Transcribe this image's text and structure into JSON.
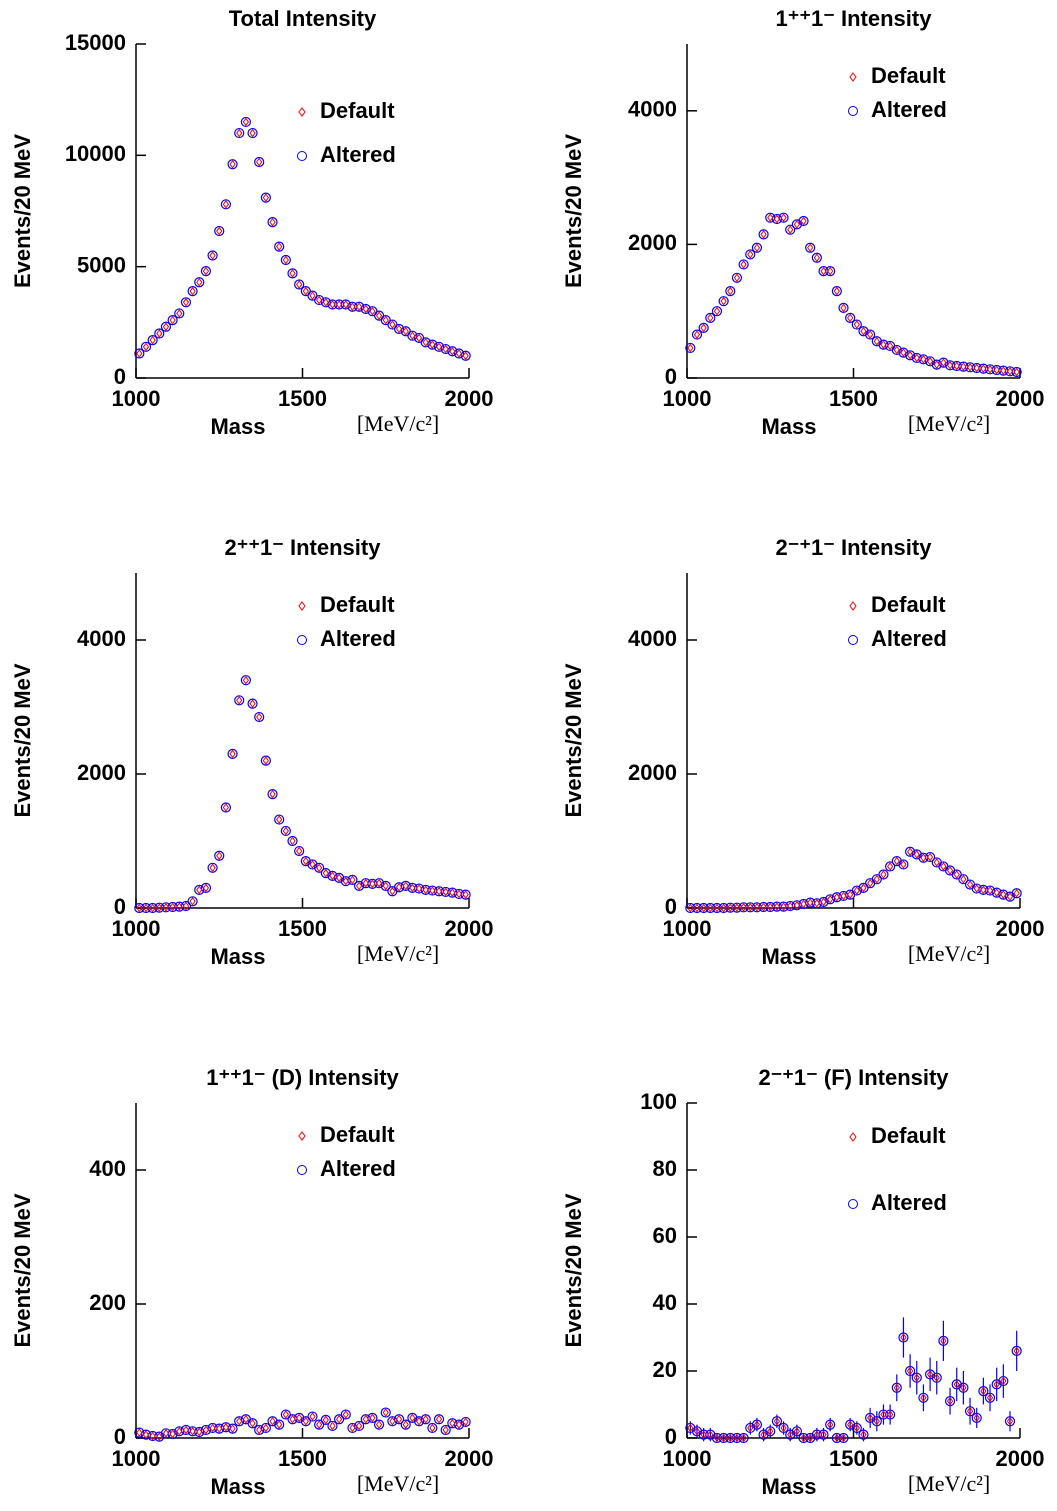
{
  "chart_data": [
    {
      "type": "scatter",
      "title": "Total Intensity",
      "ylabel": "Events/20 MeV",
      "xlabel": "Mass",
      "xunit": "[MeV/c²]",
      "xlim": [
        1000,
        2000
      ],
      "xticks": [
        1000,
        1500,
        2000
      ],
      "ylim": [
        0,
        15000
      ],
      "yticks": [
        0,
        5000,
        10000,
        15000
      ],
      "x": [
        1010,
        1030,
        1050,
        1070,
        1090,
        1110,
        1130,
        1150,
        1170,
        1190,
        1210,
        1230,
        1250,
        1270,
        1290,
        1310,
        1330,
        1350,
        1370,
        1390,
        1410,
        1430,
        1450,
        1470,
        1490,
        1510,
        1530,
        1550,
        1570,
        1590,
        1610,
        1630,
        1650,
        1670,
        1690,
        1710,
        1730,
        1750,
        1770,
        1790,
        1810,
        1830,
        1850,
        1870,
        1890,
        1910,
        1930,
        1950,
        1970,
        1990
      ],
      "series": [
        {
          "name": "Default",
          "color": "#ff0000",
          "values": [
            1100,
            1400,
            1700,
            2000,
            2300,
            2600,
            2900,
            3400,
            3900,
            4300,
            4800,
            5500,
            6600,
            7800,
            9600,
            11000,
            11500,
            11000,
            9700,
            8100,
            7000,
            5900,
            5300,
            4700,
            4200,
            3900,
            3700,
            3500,
            3400,
            3300,
            3300,
            3300,
            3200,
            3200,
            3100,
            3000,
            2800,
            2600,
            2400,
            2200,
            2100,
            1900,
            1800,
            1600,
            1500,
            1400,
            1300,
            1200,
            1100,
            1000
          ]
        },
        {
          "name": "Altered",
          "color": "#0000ff",
          "values": [
            1100,
            1400,
            1700,
            2000,
            2300,
            2600,
            2900,
            3400,
            3900,
            4300,
            4800,
            5500,
            6600,
            7800,
            9600,
            11000,
            11500,
            11000,
            9700,
            8100,
            7000,
            5900,
            5300,
            4700,
            4200,
            3900,
            3700,
            3500,
            3400,
            3300,
            3300,
            3300,
            3200,
            3200,
            3100,
            3000,
            2800,
            2600,
            2400,
            2200,
            2100,
            1900,
            1800,
            1600,
            1500,
            1400,
            1300,
            1200,
            1100,
            1000
          ]
        }
      ]
    },
    {
      "type": "scatter",
      "title": "1⁺⁺1⁻ Intensity",
      "ylabel": "Events/20 MeV",
      "xlabel": "Mass",
      "xunit": "[MeV/c²]",
      "xlim": [
        1000,
        2000
      ],
      "xticks": [
        1000,
        1500,
        2000
      ],
      "ylim": [
        0,
        5000
      ],
      "yticks": [
        0,
        2000,
        4000
      ],
      "x": [
        1010,
        1030,
        1050,
        1070,
        1090,
        1110,
        1130,
        1150,
        1170,
        1190,
        1210,
        1230,
        1250,
        1270,
        1290,
        1310,
        1330,
        1350,
        1370,
        1390,
        1410,
        1430,
        1450,
        1470,
        1490,
        1510,
        1530,
        1550,
        1570,
        1590,
        1610,
        1630,
        1650,
        1670,
        1690,
        1710,
        1730,
        1750,
        1770,
        1790,
        1810,
        1830,
        1850,
        1870,
        1890,
        1910,
        1930,
        1950,
        1970,
        1990
      ],
      "series": [
        {
          "name": "Default",
          "color": "#ff0000",
          "values": [
            450,
            650,
            750,
            900,
            1000,
            1150,
            1300,
            1500,
            1700,
            1850,
            1950,
            2150,
            2400,
            2380,
            2400,
            2220,
            2300,
            2350,
            1950,
            1800,
            1600,
            1600,
            1300,
            1050,
            900,
            800,
            700,
            650,
            550,
            500,
            480,
            420,
            380,
            340,
            300,
            280,
            250,
            200,
            230,
            190,
            180,
            170,
            160,
            150,
            140,
            130,
            120,
            110,
            100,
            90
          ]
        },
        {
          "name": "Altered",
          "color": "#0000ff",
          "values": [
            450,
            650,
            750,
            900,
            1000,
            1150,
            1300,
            1500,
            1700,
            1850,
            1950,
            2150,
            2400,
            2380,
            2400,
            2220,
            2300,
            2350,
            1950,
            1800,
            1600,
            1600,
            1300,
            1050,
            900,
            800,
            700,
            650,
            550,
            500,
            480,
            420,
            380,
            340,
            300,
            280,
            250,
            200,
            230,
            190,
            180,
            170,
            160,
            150,
            140,
            130,
            120,
            110,
            100,
            90
          ]
        }
      ]
    },
    {
      "type": "scatter",
      "title": "2⁺⁺1⁻ Intensity",
      "ylabel": "Events/20 MeV",
      "xlabel": "Mass",
      "xunit": "[MeV/c²]",
      "xlim": [
        1000,
        2000
      ],
      "xticks": [
        1000,
        1500,
        2000
      ],
      "ylim": [
        0,
        5000
      ],
      "yticks": [
        0,
        2000,
        4000
      ],
      "x": [
        1010,
        1030,
        1050,
        1070,
        1090,
        1110,
        1130,
        1150,
        1170,
        1190,
        1210,
        1230,
        1250,
        1270,
        1290,
        1310,
        1330,
        1350,
        1370,
        1390,
        1410,
        1430,
        1450,
        1470,
        1490,
        1510,
        1530,
        1550,
        1570,
        1590,
        1610,
        1630,
        1650,
        1670,
        1690,
        1710,
        1730,
        1750,
        1770,
        1790,
        1810,
        1830,
        1850,
        1870,
        1890,
        1910,
        1930,
        1950,
        1970,
        1990
      ],
      "series": [
        {
          "name": "Default",
          "color": "#ff0000",
          "values": [
            0,
            0,
            0,
            5,
            10,
            15,
            20,
            30,
            100,
            270,
            300,
            600,
            780,
            1500,
            2300,
            3100,
            3400,
            3050,
            2850,
            2200,
            1700,
            1320,
            1150,
            1000,
            850,
            700,
            650,
            600,
            520,
            480,
            450,
            400,
            420,
            330,
            370,
            360,
            370,
            330,
            250,
            310,
            330,
            300,
            290,
            270,
            260,
            250,
            240,
            230,
            210,
            200
          ]
        },
        {
          "name": "Altered",
          "color": "#0000ff",
          "values": [
            0,
            0,
            0,
            5,
            10,
            15,
            20,
            30,
            100,
            270,
            300,
            600,
            780,
            1500,
            2300,
            3100,
            3400,
            3050,
            2850,
            2200,
            1700,
            1320,
            1150,
            1000,
            850,
            700,
            650,
            600,
            520,
            480,
            450,
            400,
            420,
            330,
            370,
            360,
            370,
            330,
            250,
            310,
            330,
            300,
            290,
            270,
            260,
            250,
            240,
            230,
            210,
            200
          ]
        }
      ]
    },
    {
      "type": "scatter",
      "title": "2⁻⁺1⁻ Intensity",
      "ylabel": "Events/20 MeV",
      "xlabel": "Mass",
      "xunit": "[MeV/c²]",
      "xlim": [
        1000,
        2000
      ],
      "xticks": [
        1000,
        1500,
        2000
      ],
      "ylim": [
        0,
        5000
      ],
      "yticks": [
        0,
        2000,
        4000
      ],
      "x": [
        1010,
        1030,
        1050,
        1070,
        1090,
        1110,
        1130,
        1150,
        1170,
        1190,
        1210,
        1230,
        1250,
        1270,
        1290,
        1310,
        1330,
        1350,
        1370,
        1390,
        1410,
        1430,
        1450,
        1470,
        1490,
        1510,
        1530,
        1550,
        1570,
        1590,
        1610,
        1630,
        1650,
        1670,
        1690,
        1710,
        1730,
        1750,
        1770,
        1790,
        1810,
        1830,
        1850,
        1870,
        1890,
        1910,
        1930,
        1950,
        1970,
        1990
      ],
      "series": [
        {
          "name": "Default",
          "color": "#ff0000",
          "values": [
            0,
            0,
            0,
            0,
            0,
            0,
            5,
            5,
            10,
            10,
            10,
            15,
            15,
            20,
            20,
            30,
            40,
            60,
            80,
            70,
            90,
            130,
            160,
            180,
            200,
            260,
            300,
            370,
            430,
            500,
            620,
            700,
            650,
            840,
            800,
            750,
            760,
            680,
            620,
            560,
            500,
            430,
            350,
            290,
            270,
            260,
            230,
            200,
            170,
            220
          ]
        },
        {
          "name": "Altered",
          "color": "#0000ff",
          "values": [
            0,
            0,
            0,
            0,
            0,
            0,
            5,
            5,
            10,
            10,
            10,
            15,
            15,
            20,
            20,
            30,
            40,
            60,
            80,
            70,
            90,
            130,
            160,
            180,
            200,
            260,
            300,
            370,
            430,
            500,
            620,
            700,
            650,
            840,
            800,
            750,
            760,
            680,
            620,
            560,
            500,
            430,
            350,
            290,
            270,
            260,
            230,
            200,
            170,
            220
          ]
        }
      ]
    },
    {
      "type": "scatter",
      "title": "1⁺⁺1⁻ (D) Intensity",
      "ylabel": "Events/20 MeV",
      "xlabel": "Mass",
      "xunit": "[MeV/c²]",
      "xlim": [
        1000,
        2000
      ],
      "xticks": [
        1000,
        1500,
        2000
      ],
      "ylim": [
        0,
        500
      ],
      "yticks": [
        0,
        200,
        400
      ],
      "x": [
        1010,
        1030,
        1050,
        1070,
        1090,
        1110,
        1130,
        1150,
        1170,
        1190,
        1210,
        1230,
        1250,
        1270,
        1290,
        1310,
        1330,
        1350,
        1370,
        1390,
        1410,
        1430,
        1450,
        1470,
        1490,
        1510,
        1530,
        1550,
        1570,
        1590,
        1610,
        1630,
        1650,
        1670,
        1690,
        1710,
        1730,
        1750,
        1770,
        1790,
        1810,
        1830,
        1850,
        1870,
        1890,
        1910,
        1930,
        1950,
        1970,
        1990
      ],
      "series": [
        {
          "name": "Default",
          "color": "#ff0000",
          "values": [
            8,
            5,
            3,
            2,
            7,
            6,
            10,
            12,
            10,
            9,
            12,
            15,
            14,
            16,
            14,
            25,
            28,
            22,
            12,
            15,
            25,
            20,
            35,
            28,
            30,
            25,
            32,
            20,
            27,
            18,
            28,
            35,
            15,
            18,
            28,
            30,
            20,
            38,
            25,
            28,
            20,
            30,
            25,
            28,
            15,
            28,
            12,
            22,
            20,
            24
          ]
        },
        {
          "name": "Altered",
          "color": "#0000ff",
          "values": [
            8,
            5,
            3,
            2,
            7,
            6,
            10,
            12,
            10,
            9,
            12,
            15,
            14,
            16,
            14,
            25,
            28,
            22,
            12,
            15,
            25,
            20,
            35,
            28,
            30,
            25,
            32,
            20,
            27,
            18,
            28,
            35,
            15,
            18,
            28,
            30,
            20,
            38,
            25,
            28,
            20,
            30,
            25,
            28,
            15,
            28,
            12,
            22,
            20,
            24
          ]
        }
      ]
    },
    {
      "type": "scatter",
      "title": "2⁻⁺1⁻ (F) Intensity",
      "ylabel": "Events/20 MeV",
      "xlabel": "Mass",
      "xunit": "[MeV/c²]",
      "xlim": [
        1000,
        2000
      ],
      "xticks": [
        1000,
        1500,
        2000
      ],
      "ylim": [
        0,
        100
      ],
      "yticks": [
        0,
        20,
        40,
        60,
        80,
        100
      ],
      "x": [
        1010,
        1030,
        1050,
        1070,
        1090,
        1110,
        1130,
        1150,
        1170,
        1190,
        1210,
        1230,
        1250,
        1270,
        1290,
        1310,
        1330,
        1350,
        1370,
        1390,
        1410,
        1430,
        1450,
        1470,
        1490,
        1510,
        1530,
        1550,
        1570,
        1590,
        1610,
        1630,
        1650,
        1670,
        1690,
        1710,
        1730,
        1750,
        1770,
        1790,
        1810,
        1830,
        1850,
        1870,
        1890,
        1910,
        1930,
        1950,
        1970,
        1990
      ],
      "series": [
        {
          "name": "Default",
          "color": "#ff0000",
          "values": [
            3,
            2,
            1,
            1,
            0,
            0,
            0,
            0,
            0,
            3,
            4,
            1,
            2,
            5,
            3,
            1,
            2,
            0,
            0,
            1,
            1,
            4,
            0,
            0,
            4,
            3,
            1,
            6,
            5,
            7,
            7,
            15,
            30,
            20,
            18,
            12,
            19,
            18,
            29,
            11,
            16,
            15,
            8,
            6,
            14,
            12,
            16,
            17,
            5,
            26
          ],
          "errors": [
            2,
            2,
            2,
            2,
            1,
            1,
            1,
            1,
            1,
            2,
            2,
            2,
            2,
            2,
            2,
            2,
            2,
            1,
            1,
            2,
            2,
            2,
            1,
            1,
            2,
            2,
            2,
            3,
            3,
            3,
            3,
            4,
            6,
            5,
            5,
            4,
            5,
            5,
            6,
            4,
            5,
            5,
            4,
            3,
            4,
            4,
            5,
            5,
            3,
            6
          ]
        },
        {
          "name": "Altered",
          "color": "#0000ff",
          "values": [
            3,
            2,
            1,
            1,
            0,
            0,
            0,
            0,
            0,
            3,
            4,
            1,
            2,
            5,
            3,
            1,
            2,
            0,
            0,
            1,
            1,
            4,
            0,
            0,
            4,
            3,
            1,
            6,
            5,
            7,
            7,
            15,
            30,
            20,
            18,
            12,
            19,
            18,
            29,
            11,
            16,
            15,
            8,
            6,
            14,
            12,
            16,
            17,
            5,
            26
          ]
        }
      ]
    }
  ]
}
